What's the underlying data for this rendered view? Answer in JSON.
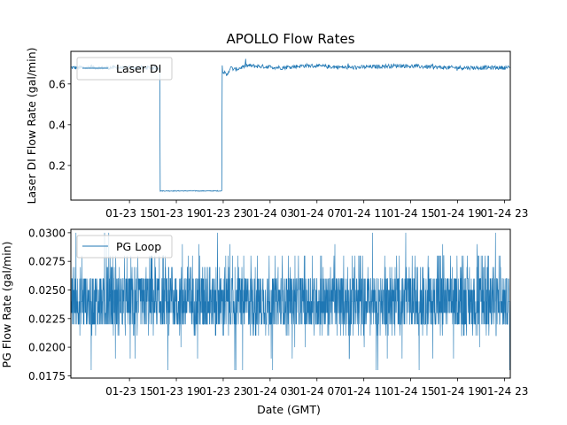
{
  "chart_data": [
    {
      "type": "line",
      "title": "APOLLO Flow Rates",
      "xlabel": "",
      "ylabel": "Laser DI Flow Rate (gal/min)",
      "x_unit": "hours since 2024-01-23 10:00 GMT",
      "xlim": [
        0,
        37.5
      ],
      "ylim": [
        0.03,
        0.76
      ],
      "yticks": [
        0.2,
        0.4,
        0.6
      ],
      "ytick_labels": [
        "0.2",
        "0.4",
        "0.6"
      ],
      "xticks": [
        5,
        9,
        13,
        17,
        21,
        25,
        29,
        33,
        37
      ],
      "xtick_labels": [
        "01-23 15",
        "01-23 19",
        "01-23 23",
        "01-24 03",
        "01-24 07",
        "01-24 11",
        "01-24 15",
        "01-24 19",
        "01-24 23"
      ],
      "legend": "top-left",
      "series": [
        {
          "name": "Laser DI",
          "color": "#1f77b4",
          "x": [
            0,
            7.6,
            7.6,
            12.9,
            12.9,
            13.3,
            13.6,
            14.0,
            15.0,
            18.0,
            20.0,
            24.0,
            28.0,
            32.0,
            37.5
          ],
          "y": [
            0.68,
            0.68,
            0.075,
            0.075,
            0.67,
            0.64,
            0.68,
            0.67,
            0.69,
            0.68,
            0.69,
            0.68,
            0.69,
            0.68,
            0.68
          ],
          "noise": 0.01
        }
      ]
    },
    {
      "type": "line",
      "title": "",
      "xlabel": "Date (GMT)",
      "ylabel": "PG Flow Rate (gal/min)",
      "x_unit": "hours since 2024-01-23 10:00 GMT",
      "xlim": [
        0,
        37.5
      ],
      "ylim": [
        0.0173,
        0.0303
      ],
      "yticks": [
        0.0175,
        0.02,
        0.0225,
        0.025,
        0.0275,
        0.03
      ],
      "ytick_labels": [
        "0.0175",
        "0.0200",
        "0.0225",
        "0.0250",
        "0.0275",
        "0.0300"
      ],
      "xticks": [
        5,
        9,
        13,
        17,
        21,
        25,
        29,
        33,
        37
      ],
      "xtick_labels": [
        "01-23 15",
        "01-23 19",
        "01-23 23",
        "01-24 03",
        "01-24 07",
        "01-24 11",
        "01-24 15",
        "01-24 19",
        "01-24 23"
      ],
      "legend": "top-left",
      "series": [
        {
          "name": "PG Loop",
          "color": "#1f77b4",
          "levels": [
            0.018,
            0.019,
            0.02,
            0.021,
            0.022,
            0.023,
            0.024,
            0.025,
            0.026,
            0.027,
            0.028,
            0.029,
            0.03
          ],
          "typical_range": [
            0.022,
            0.026
          ],
          "min": 0.018,
          "max": 0.03
        }
      ]
    }
  ]
}
